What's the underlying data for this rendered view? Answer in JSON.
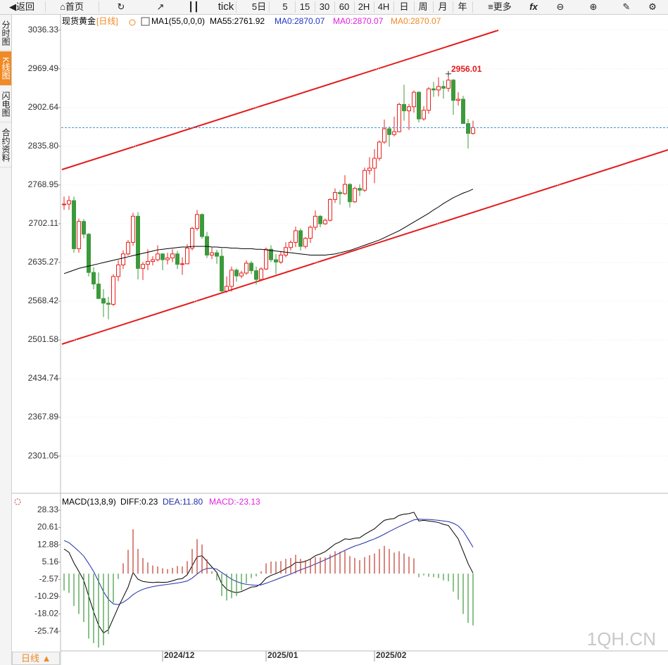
{
  "toolbar": {
    "back": "返回",
    "home": "首页",
    "periods": [
      "tick",
      "5日",
      "5",
      "15",
      "30",
      "60",
      "2H",
      "4H",
      "日",
      "周",
      "月",
      "年"
    ],
    "more": "更多",
    "formula": "fx"
  },
  "sidebar": {
    "tabs": [
      "分时图",
      "K线图",
      "闪电图",
      "合约资料"
    ]
  },
  "period_button": "日线",
  "watermark": "1QH.CN",
  "chart_data": [
    {
      "type": "candlestick",
      "title": "现货黄金",
      "period": "[日线]",
      "indicator": "MA1(55,0,0,0)",
      "up_color": "#e8201c",
      "down_color": "#3c9a3c",
      "categories": [
        null,
        null,
        null,
        null,
        null,
        null,
        null,
        null,
        null,
        null,
        null,
        null,
        null,
        null,
        null,
        null,
        null,
        null,
        null,
        null,
        "2024/12",
        null,
        null,
        null,
        null,
        null,
        null,
        null,
        null,
        null,
        null,
        null,
        null,
        null,
        null,
        null,
        null,
        null,
        null,
        null,
        null,
        "2025/01",
        null,
        null,
        null,
        null,
        null,
        null,
        null,
        null,
        null,
        null,
        null,
        null,
        null,
        null,
        null,
        null,
        null,
        null,
        null,
        null,
        null,
        "2025/02",
        null,
        null,
        null,
        null,
        null,
        null,
        null,
        null,
        null,
        null,
        null,
        null,
        null,
        null,
        null,
        null,
        null,
        null,
        null,
        null
      ],
      "open": [
        2736,
        2736,
        2742,
        2659,
        2706,
        2684,
        2618,
        2598,
        2573,
        2565,
        2563,
        2611,
        2631,
        2650,
        2670,
        2715,
        2625,
        2632,
        2637,
        2640,
        2650,
        2640,
        2643,
        2650,
        2632,
        2633,
        2660,
        2694,
        2718,
        2680,
        2648,
        2652,
        2646,
        2586,
        2594,
        2622,
        2612,
        2617,
        2634,
        2621,
        2606,
        2624,
        2658,
        2640,
        2636,
        2648,
        2661,
        2670,
        2690,
        2663,
        2677,
        2696,
        2715,
        2702,
        2708,
        2744,
        2756,
        2754,
        2770,
        2740,
        2763,
        2760,
        2794,
        2798,
        2815,
        2843,
        2866,
        2856,
        2861,
        2908,
        2897,
        2904,
        2929,
        2883,
        2898,
        2935,
        2933,
        2939,
        2936,
        2950,
        2915,
        2917,
        2875,
        2858
      ],
      "high": [
        2749,
        2750,
        2749,
        2711,
        2710,
        2686,
        2627,
        2618,
        2589,
        2576,
        2615,
        2639,
        2656,
        2674,
        2721,
        2722,
        2636,
        2658,
        2646,
        2665,
        2651,
        2652,
        2658,
        2655,
        2644,
        2667,
        2697,
        2726,
        2720,
        2688,
        2661,
        2657,
        2659,
        2611,
        2628,
        2625,
        2621,
        2639,
        2638,
        2628,
        2627,
        2661,
        2665,
        2650,
        2655,
        2670,
        2673,
        2697,
        2694,
        2679,
        2699,
        2725,
        2717,
        2711,
        2746,
        2763,
        2760,
        2786,
        2772,
        2766,
        2770,
        2799,
        2817,
        2831,
        2846,
        2882,
        2870,
        2887,
        2911,
        2942,
        2909,
        2932,
        2931,
        2905,
        2938,
        2947,
        2955,
        2949,
        2956.01,
        2952,
        2929,
        2923,
        2883,
        2880
      ],
      "low": [
        2726,
        2726,
        2652,
        2652,
        2677,
        2611,
        2589,
        2572,
        2541,
        2537,
        2560,
        2603,
        2624,
        2647,
        2664,
        2606,
        2605,
        2622,
        2630,
        2637,
        2622,
        2632,
        2636,
        2624,
        2614,
        2632,
        2656,
        2690,
        2676,
        2643,
        2641,
        2633,
        2583,
        2583,
        2585,
        2602,
        2608,
        2614,
        2615,
        2597,
        2603,
        2622,
        2636,
        2615,
        2633,
        2644,
        2656,
        2662,
        2656,
        2659,
        2669,
        2691,
        2696,
        2700,
        2706,
        2738,
        2735,
        2752,
        2730,
        2738,
        2750,
        2757,
        2787,
        2772,
        2811,
        2840,
        2835,
        2853,
        2860,
        2880,
        2864,
        2894,
        2877,
        2880,
        2892,
        2921,
        2922,
        2918,
        2930,
        2890,
        2906,
        2875,
        2832,
        2856
      ],
      "close": [
        2736,
        2742,
        2659,
        2706,
        2684,
        2618,
        2598,
        2573,
        2565,
        2563,
        2611,
        2631,
        2650,
        2670,
        2715,
        2625,
        2632,
        2637,
        2640,
        2650,
        2640,
        2643,
        2650,
        2632,
        2633,
        2660,
        2694,
        2718,
        2680,
        2648,
        2652,
        2646,
        2586,
        2594,
        2622,
        2612,
        2617,
        2634,
        2621,
        2606,
        2624,
        2658,
        2640,
        2636,
        2648,
        2661,
        2670,
        2690,
        2663,
        2677,
        2696,
        2715,
        2702,
        2708,
        2744,
        2756,
        2754,
        2770,
        2740,
        2763,
        2760,
        2794,
        2798,
        2815,
        2843,
        2866,
        2856,
        2861,
        2908,
        2897,
        2904,
        2929,
        2883,
        2898,
        2935,
        2933,
        2939,
        2936,
        2950,
        2915,
        2917,
        2875,
        2858,
        2868
      ],
      "series": [
        {
          "name": "MA55:2761.92",
          "color": "#000000",
          "values": [
            2616,
            2619,
            2622,
            2625,
            2627,
            2629,
            2631,
            2633,
            2635,
            2637,
            2639,
            2641,
            2643,
            2645,
            2647,
            2649,
            2651,
            2653,
            2655,
            2657,
            2658,
            2659,
            2660,
            2661,
            2662,
            2662,
            2663,
            2663,
            2663,
            2663,
            2662,
            2662,
            2661,
            2661,
            2660,
            2660,
            2659,
            2659,
            2659,
            2658,
            2658,
            2657,
            2656,
            2655,
            2654,
            2653,
            2652,
            2651,
            2650,
            2649,
            2648,
            2648,
            2648,
            2648,
            2649,
            2650,
            2652,
            2654,
            2656,
            2659,
            2662,
            2665,
            2668,
            2671,
            2674,
            2678,
            2682,
            2686,
            2690,
            2695,
            2700,
            2705,
            2710,
            2715,
            2720,
            2726,
            2731,
            2737,
            2742,
            2747,
            2751,
            2755,
            2758,
            2761.92
          ]
        }
      ],
      "ma0_labels": [
        {
          "text": "MA0:2870.07",
          "color": "#1f35c8"
        },
        {
          "text": "MA0:2870.07",
          "color": "#e020e0"
        },
        {
          "text": "MA0:2870.07",
          "color": "#f08a24"
        }
      ],
      "max_high": 2956.01,
      "ylim": [
        2238,
        3064
      ],
      "yticks": [
        3036.33,
        2969.49,
        2902.64,
        {
          "value": 2835.8,
          "label": "2835.80"
        },
        2768.95,
        2702.11,
        2635.27,
        2568.42,
        2501.58,
        2434.74,
        2367.89,
        2301.05
      ],
      "grid": true
    },
    {
      "type": "macd",
      "title": "MACD(13,8,9)",
      "positive_color": "#c0392b",
      "negative_color": "#3c9a3c",
      "series": [
        {
          "name": "DIFF:0.23",
          "color": "#000000",
          "values": [
            11.0,
            9.5,
            4.8,
            1.0,
            -3.0,
            -10.0,
            -17.0,
            -23.0,
            -26.5,
            -25.0,
            -20.0,
            -15.0,
            -10.5,
            -6.0,
            0.5,
            -2.5,
            -3.5,
            -3.8,
            -4.0,
            -3.8,
            -3.9,
            -3.8,
            -3.2,
            -2.5,
            -2.2,
            -0.5,
            3.5,
            7.5,
            8.0,
            5.5,
            3.0,
            0.5,
            -4.5,
            -7.0,
            -8.0,
            -8.5,
            -8.0,
            -7.0,
            -6.0,
            -5.8,
            -4.5,
            -2.0,
            -0.8,
            0.0,
            1.0,
            2.3,
            3.3,
            5.0,
            5.0,
            5.5,
            6.5,
            8.0,
            8.8,
            9.8,
            11.5,
            13.2,
            14.2,
            15.5,
            15.3,
            15.8,
            16.0,
            17.5,
            18.8,
            20.0,
            22.0,
            23.8,
            24.3,
            24.6,
            26.0,
            26.5,
            26.8,
            27.4,
            23.5,
            23.8,
            23.5,
            23.2,
            22.8,
            22.0,
            21.5,
            18.5,
            15.5,
            10.0,
            4.5,
            0.23
          ]
        },
        {
          "name": "DEA:11.80",
          "color": "#1f2fa8",
          "values": [
            14.8,
            13.8,
            12.0,
            10.0,
            7.8,
            4.5,
            1.0,
            -3.5,
            -8.0,
            -11.5,
            -13.5,
            -13.8,
            -12.8,
            -11.3,
            -9.4,
            -8.0,
            -7.0,
            -6.3,
            -5.8,
            -5.4,
            -5.1,
            -4.8,
            -4.5,
            -4.2,
            -3.8,
            -3.3,
            -2.0,
            -0.2,
            1.5,
            2.3,
            2.5,
            2.0,
            0.5,
            -1.0,
            -2.5,
            -3.5,
            -4.3,
            -4.8,
            -5.0,
            -5.2,
            -5.0,
            -4.3,
            -3.5,
            -2.7,
            -1.8,
            -1.0,
            -0.2,
            0.8,
            1.7,
            2.5,
            3.3,
            4.3,
            5.2,
            6.2,
            7.2,
            8.2,
            9.3,
            10.4,
            11.4,
            12.3,
            13.0,
            13.8,
            14.7,
            15.5,
            16.5,
            17.6,
            18.8,
            19.9,
            21.0,
            22.0,
            23.0,
            24.0,
            24.3,
            24.2,
            24.2,
            24.0,
            23.8,
            23.5,
            23.2,
            22.5,
            21.3,
            19.0,
            15.5,
            11.8
          ]
        },
        {
          "name": "MACD:-23.13",
          "color": "#e020e0",
          "values": [
            -7.6,
            -8.6,
            -14.4,
            -18.0,
            -21.6,
            -29.0,
            -31.0,
            -33.0,
            -32.0,
            -27.0,
            -13.0,
            -2.4,
            4.6,
            10.6,
            19.8,
            11.0,
            7.0,
            5.0,
            3.6,
            3.2,
            2.4,
            2.0,
            2.6,
            3.4,
            3.2,
            5.6,
            11.0,
            15.4,
            13.0,
            6.4,
            1.0,
            -3.0,
            -10.0,
            -12.0,
            -11.0,
            -10.0,
            -7.4,
            -4.4,
            -2.0,
            -1.2,
            1.0,
            4.6,
            5.4,
            5.4,
            5.6,
            6.6,
            7.0,
            8.4,
            6.6,
            6.0,
            6.4,
            7.4,
            7.2,
            7.2,
            8.6,
            10.0,
            9.8,
            10.2,
            7.8,
            7.0,
            6.0,
            7.4,
            8.2,
            9.0,
            11.0,
            12.4,
            11.0,
            9.4,
            10.0,
            9.0,
            7.6,
            6.8,
            -1.6,
            -0.8,
            -1.4,
            -1.6,
            -2.0,
            -3.0,
            -3.4,
            -8.0,
            -11.6,
            -18.0,
            -22.0,
            -23.13
          ]
        }
      ],
      "ylim": [
        -34.5,
        34.6
      ],
      "yticks": [
        28.33,
        20.61,
        12.88,
        5.16,
        -2.57,
        -10.29,
        -18.02,
        -25.74
      ]
    }
  ]
}
